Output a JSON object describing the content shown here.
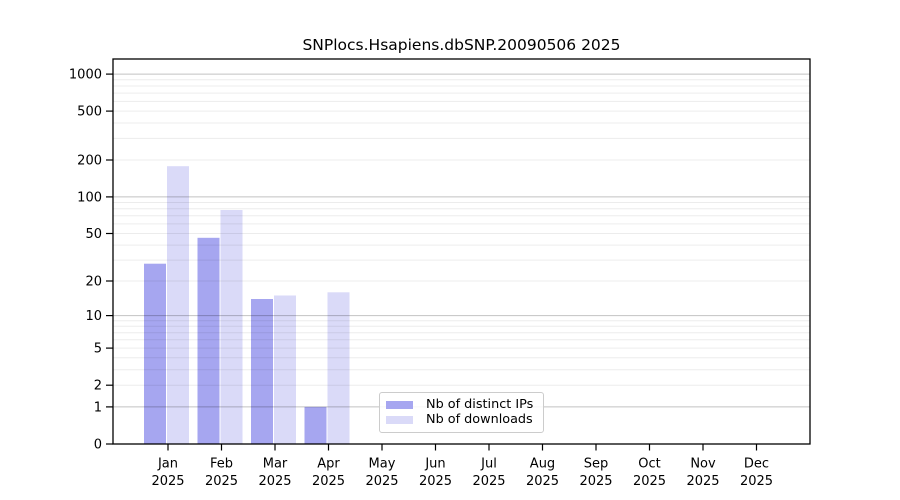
{
  "figure": {
    "title": "SNPlocs.Hsapiens.dbSNP.20090506 2025"
  },
  "chart_data": {
    "type": "bar",
    "title": "SNPlocs.Hsapiens.dbSNP.20090506 2025",
    "categories": [
      {
        "month": "Jan",
        "year": "2025"
      },
      {
        "month": "Feb",
        "year": "2025"
      },
      {
        "month": "Mar",
        "year": "2025"
      },
      {
        "month": "Apr",
        "year": "2025"
      },
      {
        "month": "May",
        "year": "2025"
      },
      {
        "month": "Jun",
        "year": "2025"
      },
      {
        "month": "Jul",
        "year": "2025"
      },
      {
        "month": "Aug",
        "year": "2025"
      },
      {
        "month": "Sep",
        "year": "2025"
      },
      {
        "month": "Oct",
        "year": "2025"
      },
      {
        "month": "Nov",
        "year": "2025"
      },
      {
        "month": "Dec",
        "year": "2025"
      }
    ],
    "series": [
      {
        "name": "Nb of distinct IPs",
        "color": "#a6a6f0",
        "values": [
          28,
          46,
          14,
          1,
          0,
          0,
          0,
          0,
          0,
          0,
          0,
          0
        ]
      },
      {
        "name": "Nb of downloads",
        "color": "#dadaf8",
        "values": [
          178,
          78,
          15,
          16,
          0,
          0,
          0,
          0,
          0,
          0,
          0,
          0
        ]
      }
    ],
    "yscale": "log10(value+1)",
    "ylim": [
      0,
      1325
    ],
    "ytick_labels": [
      "0",
      "1",
      "2",
      "5",
      "10",
      "20",
      "50",
      "100",
      "200",
      "500",
      "1000"
    ],
    "ytick_values": [
      0,
      1,
      2,
      5,
      10,
      20,
      50,
      100,
      200,
      500,
      1000
    ],
    "major_gridlines": [
      1,
      10,
      100,
      1000
    ],
    "minor_gridlines": [
      2,
      3,
      4,
      5,
      6,
      7,
      8,
      9,
      20,
      30,
      40,
      50,
      60,
      70,
      80,
      90,
      200,
      300,
      400,
      500,
      600,
      700,
      800,
      900
    ],
    "grid": true,
    "legend_position": "lower center inside",
    "colors": {
      "axis": "#000000",
      "major_grid": "rgba(0,0,0,0.24)",
      "minor_grid": "rgba(0,0,0,0.075)",
      "background": "#ffffff",
      "legend_border": "#cccccc"
    }
  }
}
